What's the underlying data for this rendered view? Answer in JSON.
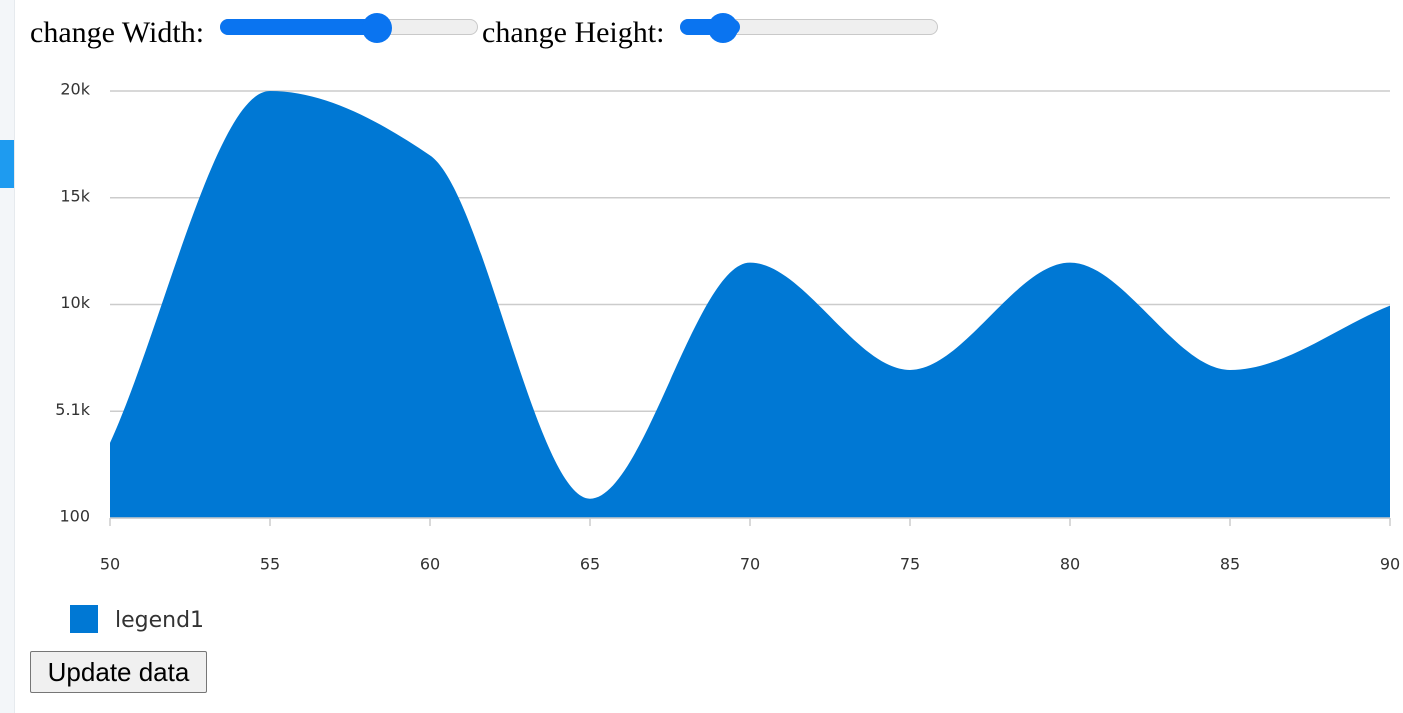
{
  "controls": {
    "width_label": "change Width:",
    "height_label": "change Height:"
  },
  "chart_data": {
    "type": "area",
    "x": [
      50,
      55,
      60,
      65,
      70,
      75,
      80,
      85,
      90
    ],
    "series": [
      {
        "name": "legend1",
        "color": "#0078d4",
        "values": [
          3600,
          20000,
          17000,
          1000,
          12000,
          7000,
          12000,
          7000,
          10000
        ]
      }
    ],
    "xlim": [
      50,
      90
    ],
    "xticks": [
      50,
      55,
      60,
      65,
      70,
      75,
      80,
      85,
      90
    ],
    "ylim": [
      100,
      20000
    ],
    "yticks": [
      100,
      {
        "value": 5075,
        "label": "5.1k"
      },
      {
        "value": 10050,
        "label": "10k"
      },
      {
        "value": 15025,
        "label": "15k"
      },
      {
        "value": 20000,
        "label": "20k"
      }
    ],
    "grid": true
  },
  "button": "Update data"
}
